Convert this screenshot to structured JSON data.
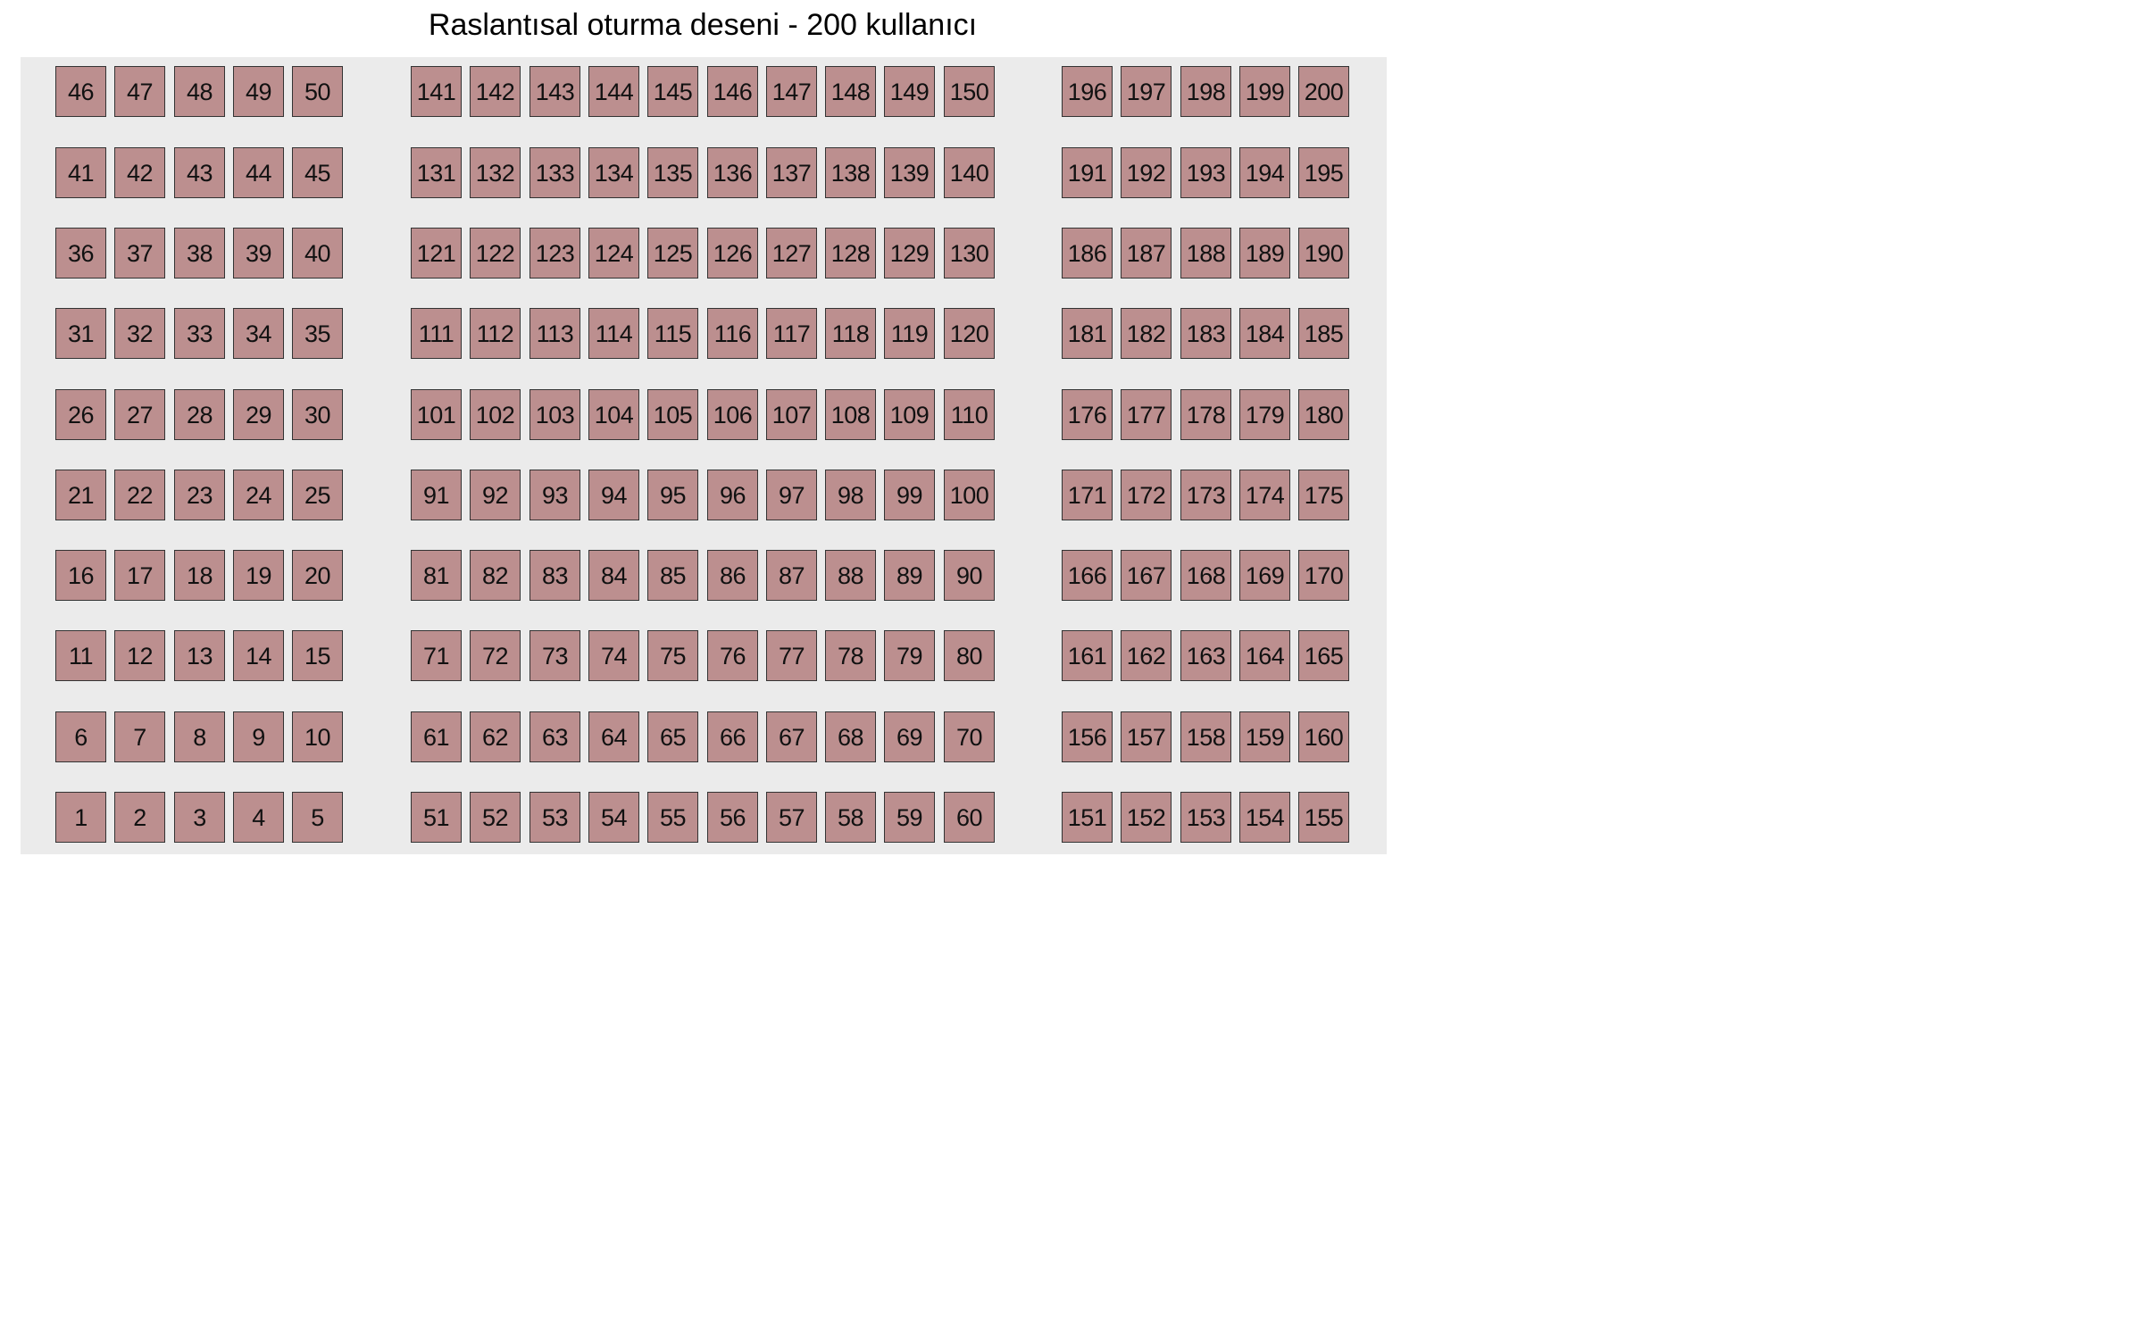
{
  "title": "Raslantısal oturma deseni - 200 kullanıcı",
  "colors": {
    "background": "#ebebeb",
    "seat_fill": "#bc8f8f",
    "seat_border": "#333333"
  },
  "seating": {
    "sections": [
      {
        "name": "left",
        "seats_per_row": 5,
        "first_seat": 1
      },
      {
        "name": "center",
        "seats_per_row": 10,
        "first_seat": 51
      },
      {
        "name": "right",
        "seats_per_row": 5,
        "first_seat": 151
      }
    ],
    "rows": 10,
    "total_seats": 200
  }
}
